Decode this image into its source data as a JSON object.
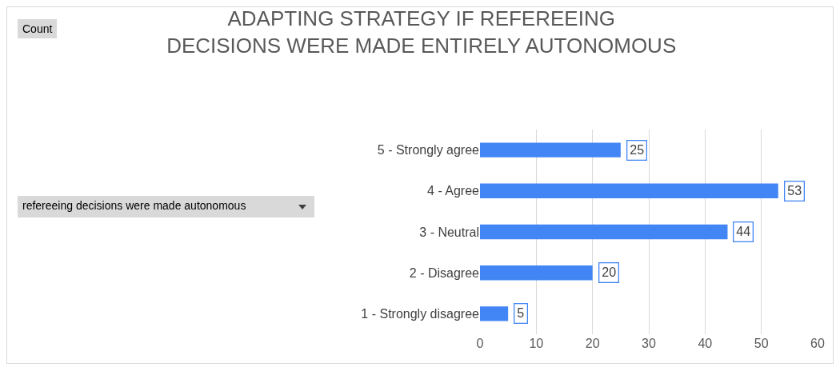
{
  "chart_data": {
    "type": "bar",
    "orientation": "horizontal",
    "title": "ADAPTING STRATEGY IF REFEREEING DECISIONS WERE MADE ENTIRELY AUTONOMOUS",
    "categories": [
      "5 - Strongly agree",
      "4 - Agree",
      "3 - Neutral",
      "2 - Disagree",
      "1 - Strongly disagree"
    ],
    "values": [
      25,
      53,
      44,
      20,
      5
    ],
    "color": "#4285f4",
    "data_labels": true,
    "xlim": [
      0,
      60
    ],
    "xticks": [
      0,
      10,
      20,
      30,
      40,
      50,
      60
    ],
    "grid": "x",
    "legend": false,
    "annotations": [
      "Count",
      "refereeing decisions were made autonomous"
    ]
  }
}
